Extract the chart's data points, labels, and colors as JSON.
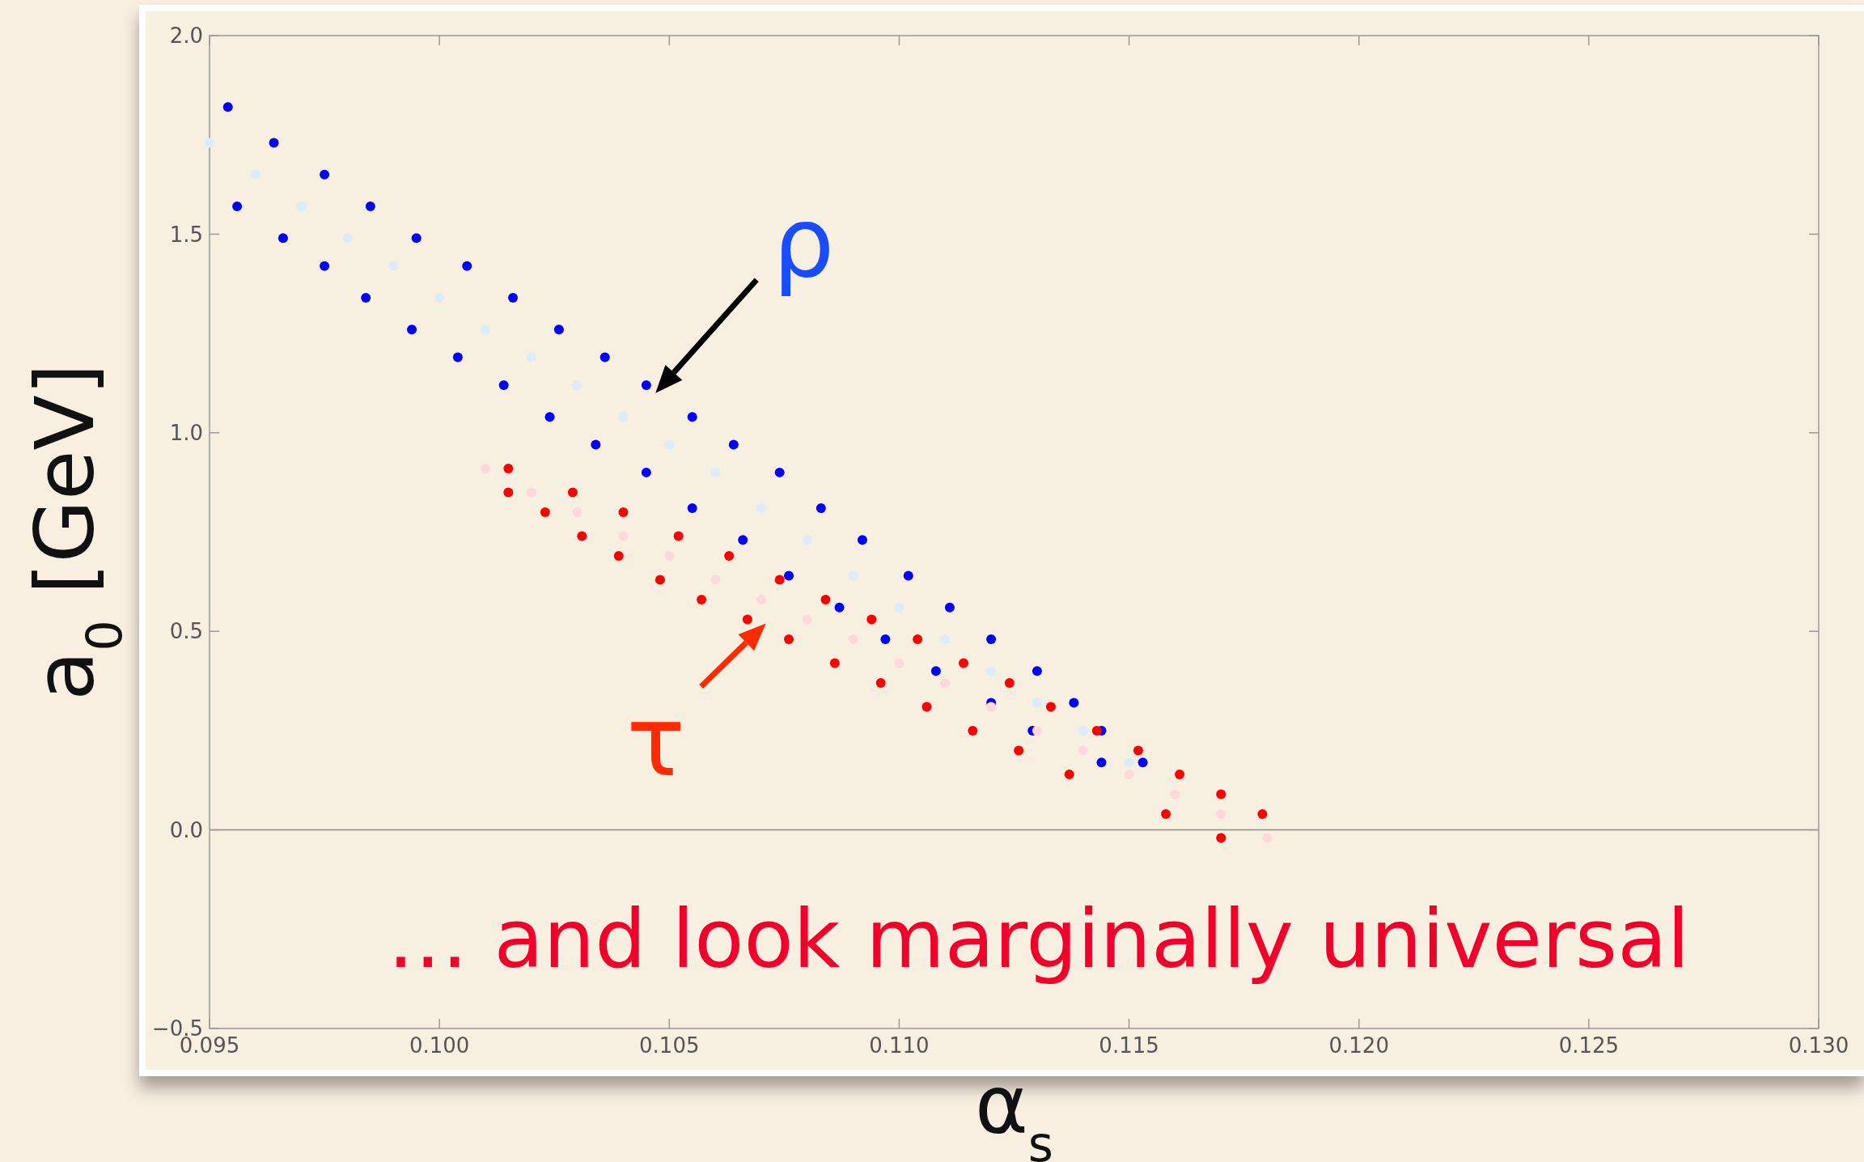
{
  "chart_data": {
    "type": "scatter",
    "xlabel": "α$_{s}$",
    "ylabel": "a$_{0}$ [GeV]",
    "xlim": [
      0.095,
      0.13
    ],
    "ylim": [
      -0.5,
      2.0
    ],
    "xticks": [
      0.095,
      {
        "value": 0.1,
        "label": "0.100"
      },
      0.105,
      {
        "value": 0.11,
        "label": "0.110"
      },
      0.115,
      {
        "value": 0.12,
        "label": "0.120"
      },
      0.125,
      {
        "value": 0.13,
        "label": "0.130"
      }
    ],
    "yticks": [
      {
        "value": -0.5,
        "label": "−0.5"
      },
      {
        "value": 0,
        "label": "0.0"
      },
      0.5,
      {
        "value": 1,
        "label": "1.0"
      },
      1.5,
      {
        "value": 2,
        "label": "2.0"
      }
    ],
    "grid": false,
    "marker": "circle",
    "ref_lines": [
      {
        "axis": "y",
        "value": 0,
        "color": "#8a8a8a"
      }
    ],
    "annotations": [
      "ρ",
      "τ",
      "… and look marginally universal"
    ],
    "series": [
      {
        "color": "#dcecfa",
        "x": [
          0.095,
          0.096,
          0.097,
          0.098,
          0.099,
          0.1,
          0.101,
          0.102,
          0.103,
          0.104,
          0.105,
          0.106,
          0.107,
          0.108,
          0.109,
          0.11,
          0.111,
          0.112,
          0.113,
          0.114,
          0.115
        ],
        "values": [
          1.73,
          1.65,
          1.57,
          1.49,
          1.42,
          1.34,
          1.26,
          1.19,
          1.12,
          1.04,
          0.97,
          0.9,
          0.81,
          0.73,
          0.64,
          0.56,
          0.48,
          0.4,
          0.32,
          0.25,
          0.17
        ]
      },
      {
        "color": "#0000ff",
        "x": [
          0.0954,
          0.0956,
          0.0964,
          0.0966,
          0.0975,
          0.0975,
          0.0985,
          0.0984,
          0.0995,
          0.0994,
          0.1006,
          0.1004,
          0.1016,
          0.1014,
          0.1026,
          0.1024,
          0.1036,
          0.1034,
          0.1045,
          0.1045,
          0.1055,
          0.1055,
          0.1064,
          0.1066,
          0.1074,
          0.1076,
          0.1083,
          0.1087,
          0.1092,
          0.1097,
          0.1102,
          0.1108,
          0.1111,
          0.112,
          0.112,
          0.1129,
          0.113,
          0.1138,
          0.1144,
          0.1144,
          0.1153
        ],
        "values": [
          1.82,
          1.57,
          1.73,
          1.49,
          1.65,
          1.42,
          1.57,
          1.34,
          1.49,
          1.26,
          1.42,
          1.19,
          1.34,
          1.12,
          1.26,
          1.04,
          1.19,
          0.97,
          1.12,
          0.9,
          1.04,
          0.81,
          0.97,
          0.73,
          0.9,
          0.64,
          0.81,
          0.56,
          0.73,
          0.48,
          0.64,
          0.4,
          0.56,
          0.32,
          0.48,
          0.25,
          0.4,
          0.32,
          0.25,
          0.17,
          0.17
        ]
      },
      {
        "color": "#ffd8dc",
        "x": [
          0.101,
          0.102,
          0.103,
          0.104,
          0.105,
          0.106,
          0.107,
          0.108,
          0.109,
          0.11,
          0.111,
          0.112,
          0.113,
          0.114,
          0.115,
          0.116,
          0.117,
          0.118
        ],
        "values": [
          0.91,
          0.85,
          0.8,
          0.74,
          0.69,
          0.63,
          0.58,
          0.53,
          0.48,
          0.42,
          0.37,
          0.31,
          0.25,
          0.2,
          0.14,
          0.09,
          0.04,
          -0.02
        ]
      },
      {
        "color": "#ff0000",
        "x": [
          0.1015,
          0.1015,
          0.1023,
          0.1029,
          0.1031,
          0.104,
          0.1039,
          0.1052,
          0.1048,
          0.1057,
          0.1063,
          0.1067,
          0.1074,
          0.1076,
          0.1084,
          0.1086,
          0.1094,
          0.1096,
          0.1104,
          0.1106,
          0.1114,
          0.1116,
          0.1124,
          0.1126,
          0.1133,
          0.1137,
          0.1143,
          0.1152,
          0.1158,
          0.1161,
          0.117,
          0.117,
          0.1179
        ],
        "values": [
          0.91,
          0.85,
          0.8,
          0.85,
          0.74,
          0.8,
          0.69,
          0.74,
          0.63,
          0.58,
          0.69,
          0.53,
          0.63,
          0.48,
          0.58,
          0.42,
          0.53,
          0.37,
          0.48,
          0.31,
          0.42,
          0.25,
          0.37,
          0.2,
          0.31,
          0.14,
          0.25,
          0.2,
          0.04,
          0.14,
          0.09,
          -0.02,
          0.04
        ]
      }
    ]
  }
}
